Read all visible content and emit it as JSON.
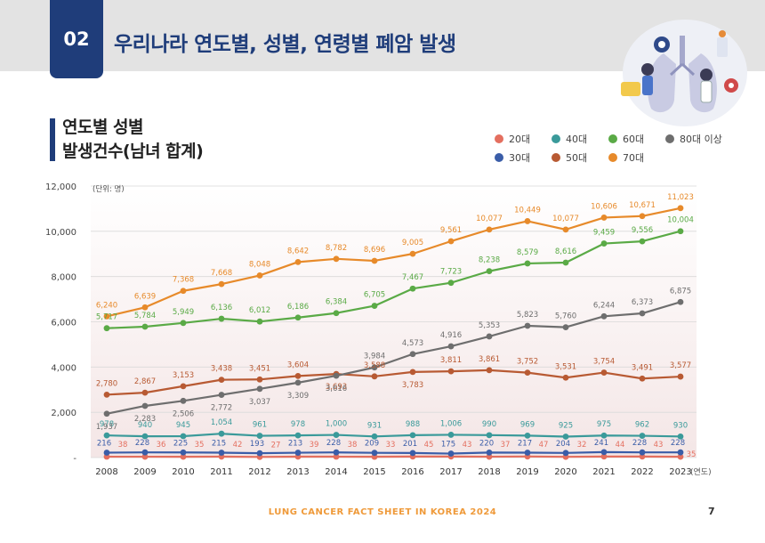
{
  "header": {
    "chapter_number": "02",
    "title": "우리나라 연도별, 성별, 연령별 폐암 발생"
  },
  "section": {
    "title_line1": "연도별 성별",
    "title_line2": "발생건수(남녀 합계)"
  },
  "footer": {
    "text": "LUNG CANCER FACT SHEET IN KOREA 2024",
    "page_number": "7"
  },
  "chart_data": {
    "type": "line",
    "unit_label": "(단위: 명)",
    "xlabel_suffix": "(연도)",
    "x": [
      "2008",
      "2009",
      "2010",
      "2011",
      "2012",
      "2013",
      "2014",
      "2015",
      "2016",
      "2017",
      "2018",
      "2019",
      "2020",
      "2021",
      "2022",
      "2023"
    ],
    "ylim": [
      0,
      12000
    ],
    "yticks": [
      0,
      2000,
      4000,
      6000,
      8000,
      10000,
      12000
    ],
    "ytick_labels": [
      "-",
      "2,000",
      "4,000",
      "6,000",
      "8,000",
      "10,000",
      "12,000"
    ],
    "legend_position": "top-right",
    "series": [
      {
        "name": "20대",
        "color": "#e46f5f",
        "label_pos": "below",
        "values": [
          38,
          36,
          35,
          42,
          27,
          39,
          38,
          33,
          45,
          43,
          37,
          47,
          32,
          44,
          43,
          35
        ]
      },
      {
        "name": "30대",
        "color": "#3a5da8",
        "label_pos": "above",
        "values": [
          216,
          228,
          225,
          215,
          193,
          213,
          228,
          209,
          201,
          175,
          220,
          217,
          204,
          241,
          228,
          228
        ]
      },
      {
        "name": "40대",
        "color": "#3a9a9a",
        "label_pos": "above",
        "values": [
          978,
          940,
          945,
          1054,
          961,
          978,
          1000,
          931,
          988,
          1006,
          990,
          969,
          925,
          975,
          962,
          930
        ]
      },
      {
        "name": "50대",
        "color": "#b85a33",
        "label_pos": "mixed",
        "values": [
          2780,
          2867,
          3153,
          3438,
          3451,
          3604,
          3693,
          3588,
          3783,
          3811,
          3861,
          3752,
          3531,
          3754,
          3491,
          3577
        ]
      },
      {
        "name": "60대",
        "color": "#5aaa46",
        "label_pos": "above",
        "values": [
          5717,
          5784,
          5949,
          6136,
          6012,
          6186,
          6384,
          6705,
          7467,
          7723,
          8238,
          8579,
          8616,
          9459,
          9556,
          10004
        ]
      },
      {
        "name": "70대",
        "color": "#e78a2a",
        "label_pos": "above",
        "values": [
          6240,
          6639,
          7368,
          7668,
          8048,
          8642,
          8782,
          8696,
          9005,
          9561,
          10077,
          10449,
          10077,
          10606,
          10671,
          11023
        ]
      },
      {
        "name": "80대 이상",
        "color": "#6e6e6e",
        "label_pos": "mixed",
        "values": [
          1937,
          2283,
          2506,
          2772,
          3037,
          3309,
          3616,
          3984,
          4573,
          4916,
          5353,
          5823,
          5760,
          6244,
          6373,
          6875
        ]
      }
    ]
  }
}
